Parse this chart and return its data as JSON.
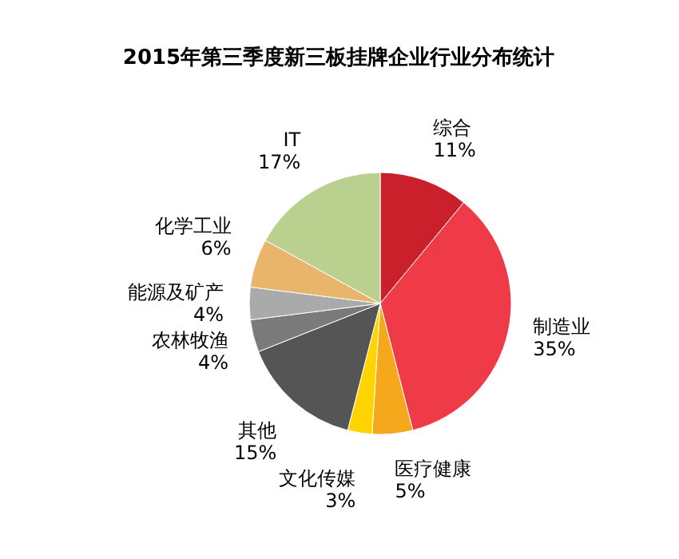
{
  "chart_data": {
    "type": "pie",
    "title": "2015年第三季度新三板挂牌企业行业分布统计",
    "categories": [
      "综合",
      "制造业",
      "医疗健康",
      "文化传媒",
      "其他",
      "农林牧渔",
      "能源及矿产",
      "化学工业",
      "IT"
    ],
    "values": [
      11,
      35,
      5,
      3,
      15,
      4,
      4,
      6,
      17
    ],
    "value_labels": [
      "11%",
      "35%",
      "5%",
      "3%",
      "15%",
      "4%",
      "4%",
      "6%",
      "17%"
    ],
    "colors": [
      "#c9202b",
      "#ef3b47",
      "#f5a81c",
      "#ffd400",
      "#555555",
      "#7a7a7a",
      "#aaaaaa",
      "#e8b56a",
      "#b9d08f"
    ]
  }
}
